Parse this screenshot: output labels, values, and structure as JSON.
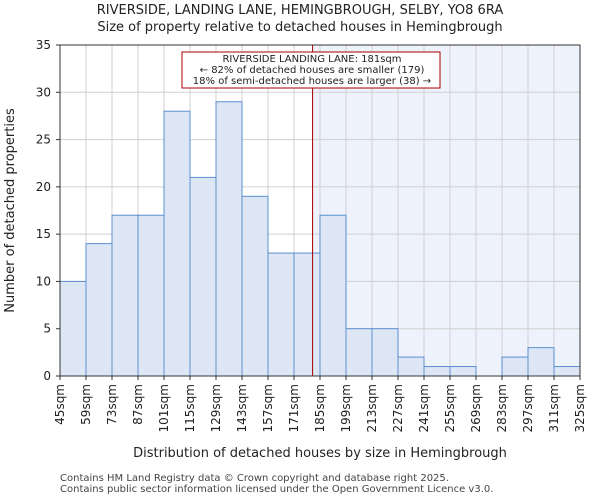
{
  "title": "RIVERSIDE, LANDING LANE, HEMINGBROUGH, SELBY, YO8 6RA",
  "subtitle": "Size of property relative to detached houses in Hemingbrough",
  "footer": {
    "line1": "Contains HM Land Registry data © Crown copyright and database right 2025.",
    "line2": "Contains public sector information licensed under the Open Government Licence v3.0."
  },
  "chart_data": {
    "type": "bar",
    "title": "Size of property relative to detached houses in Hemingbrough",
    "xlabel": "Distribution of detached houses by size in Hemingbrough",
    "ylabel": "Number of detached properties",
    "bin_edges": [
      45,
      59,
      73,
      87,
      101,
      115,
      129,
      143,
      157,
      171,
      185,
      199,
      213,
      227,
      241,
      255,
      269,
      283,
      297,
      311,
      325
    ],
    "tick_labels": [
      "45sqm",
      "59sqm",
      "73sqm",
      "87sqm",
      "101sqm",
      "115sqm",
      "129sqm",
      "143sqm",
      "157sqm",
      "171sqm",
      "185sqm",
      "199sqm",
      "213sqm",
      "227sqm",
      "241sqm",
      "255sqm",
      "269sqm",
      "283sqm",
      "297sqm",
      "311sqm",
      "325sqm"
    ],
    "values": [
      10,
      14,
      17,
      17,
      28,
      21,
      29,
      19,
      13,
      13,
      17,
      5,
      5,
      2,
      1,
      1,
      0,
      2,
      3,
      1
    ],
    "ylim": [
      0,
      35
    ],
    "yticks": [
      0,
      5,
      10,
      15,
      20,
      25,
      30,
      35
    ],
    "grid": true,
    "marker": {
      "value": 181,
      "label": "RIVERSIDE LANDING LANE: 181sqm",
      "line2": "← 82% of detached houses are smaller (179)",
      "line3": "18% of semi-detached houses are larger (38) →"
    },
    "colors": {
      "bar_fill": "#dce6f5",
      "bar_stroke": "#5b8fd0",
      "highlight_bg": "#eef2fc",
      "marker": "#aa0000",
      "grid": "#d0d0d0"
    }
  }
}
